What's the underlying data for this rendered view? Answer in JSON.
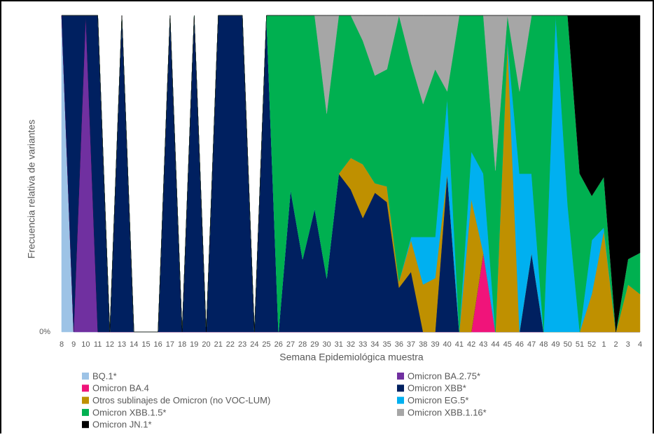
{
  "chart_data": {
    "type": "stacked_area",
    "x_label": "Semana Epidemiológica muestra",
    "y_label": "Frecuencia relativa de variantes",
    "categories": [
      "8",
      "9",
      "10",
      "11",
      "12",
      "13",
      "14",
      "15",
      "16",
      "17",
      "18",
      "19",
      "20",
      "21",
      "22",
      "23",
      "24",
      "25",
      "26",
      "27",
      "28",
      "29",
      "30",
      "31",
      "32",
      "33",
      "34",
      "35",
      "36",
      "37",
      "38",
      "39",
      "40",
      "41",
      "42",
      "43",
      "44",
      "45",
      "46",
      "47",
      "48",
      "49",
      "50",
      "51",
      "52",
      "1",
      "2",
      "3",
      "4"
    ],
    "ylim": [
      0,
      100
    ],
    "yticks": [
      {
        "value": 0,
        "label": "0%"
      }
    ],
    "series": [
      {
        "name": "BQ.1*",
        "color": "#9dc3e6",
        "values": [
          100,
          0,
          0,
          0,
          0,
          0,
          0,
          0,
          0,
          0,
          0,
          0,
          0,
          0,
          0,
          0,
          0,
          0,
          0,
          0,
          0,
          0,
          0,
          0,
          0,
          0,
          0,
          0,
          0,
          0,
          0,
          0,
          0,
          0,
          0,
          0,
          0,
          0,
          0,
          0,
          0,
          0,
          0,
          0,
          0,
          0,
          0,
          0,
          0
        ]
      },
      {
        "name": "Omicron BA.2.75*",
        "color": "#7030a0",
        "values": [
          0,
          0,
          100,
          0,
          0,
          0,
          0,
          0,
          0,
          0,
          0,
          0,
          0,
          0,
          0,
          0,
          0,
          0,
          0,
          0,
          0,
          0,
          0,
          0,
          0,
          0,
          0,
          0,
          0,
          0,
          0,
          0,
          0,
          0,
          0,
          0,
          0,
          0,
          0,
          0,
          0,
          0,
          0,
          0,
          0,
          0,
          0,
          0,
          0
        ]
      },
      {
        "name": "Omicron BA.4",
        "color": "#f0147a",
        "values": [
          0,
          0,
          0,
          0,
          0,
          0,
          0,
          0,
          0,
          0,
          0,
          0,
          0,
          0,
          0,
          0,
          0,
          0,
          0,
          0,
          0,
          0,
          0,
          0,
          0,
          0,
          0,
          0,
          0,
          0,
          0,
          0,
          0,
          0,
          0,
          25,
          0,
          0,
          0,
          0,
          0,
          0,
          0,
          0,
          0,
          0,
          0,
          0,
          0
        ]
      },
      {
        "name": "Omicron XBB*",
        "color": "#002060",
        "values": [
          0,
          100,
          0,
          100,
          0,
          100,
          0,
          0,
          0,
          100,
          0,
          100,
          0,
          100,
          100,
          100,
          0,
          100,
          0,
          45,
          23,
          39,
          17,
          50,
          45,
          36,
          44,
          41,
          14,
          19,
          0,
          0,
          50,
          0,
          0,
          0,
          0,
          0,
          0,
          25,
          0,
          0,
          0,
          0,
          0,
          0,
          0,
          0,
          0
        ]
      },
      {
        "name": "Otros sublinajes de Omicron (no VOC-LUM)",
        "color": "#bf9000",
        "values": [
          0,
          0,
          0,
          0,
          0,
          0,
          0,
          0,
          0,
          0,
          0,
          0,
          0,
          0,
          0,
          0,
          0,
          0,
          0,
          0,
          0,
          0,
          0,
          0,
          10,
          17,
          3,
          5,
          2,
          10,
          15,
          17,
          0,
          0,
          42,
          0,
          0,
          92,
          0,
          0,
          0,
          0,
          0,
          0,
          12,
          32,
          0,
          15,
          12
        ]
      },
      {
        "name": "Omicron EG.5*",
        "color": "#00b0f0",
        "values": [
          0,
          0,
          0,
          0,
          0,
          0,
          0,
          0,
          0,
          0,
          0,
          0,
          0,
          0,
          0,
          0,
          0,
          0,
          0,
          0,
          0,
          0,
          0,
          0,
          0,
          0,
          0,
          0,
          0,
          1,
          15,
          13,
          24,
          0,
          15,
          25,
          0,
          0,
          50,
          25,
          0,
          100,
          40,
          0,
          17,
          1,
          0,
          0,
          0
        ]
      },
      {
        "name": "Omicron XBB.1.5*",
        "color": "#00b050",
        "values": [
          0,
          0,
          0,
          0,
          0,
          0,
          0,
          0,
          0,
          0,
          0,
          0,
          0,
          0,
          0,
          0,
          0,
          0,
          100,
          55,
          77,
          61,
          52,
          50,
          45,
          39,
          34,
          37,
          84,
          55,
          42,
          53,
          2,
          100,
          43,
          50,
          51,
          8,
          26,
          50,
          100,
          0,
          60,
          50,
          14,
          16,
          0,
          8,
          13
        ]
      },
      {
        "name": "Omicron XBB.1.16*",
        "color": "#a6a6a6",
        "values": [
          0,
          0,
          0,
          0,
          0,
          0,
          0,
          0,
          0,
          0,
          0,
          0,
          0,
          0,
          0,
          0,
          0,
          0,
          0,
          0,
          0,
          0,
          31,
          0,
          0,
          8,
          19,
          17,
          0,
          15,
          28,
          17,
          24,
          0,
          0,
          0,
          49,
          0,
          24,
          0,
          0,
          0,
          0,
          0,
          0,
          0,
          0,
          0,
          0
        ]
      },
      {
        "name": "Omicron JN.1*",
        "color": "#000000",
        "values": [
          0,
          0,
          0,
          0,
          0,
          0,
          0,
          0,
          0,
          0,
          0,
          0,
          0,
          0,
          0,
          0,
          0,
          0,
          0,
          0,
          0,
          0,
          0,
          0,
          0,
          0,
          0,
          0,
          0,
          0,
          0,
          0,
          0,
          0,
          0,
          0,
          0,
          0,
          0,
          0,
          0,
          0,
          0,
          50,
          57,
          51,
          100,
          77,
          75
        ]
      }
    ]
  }
}
